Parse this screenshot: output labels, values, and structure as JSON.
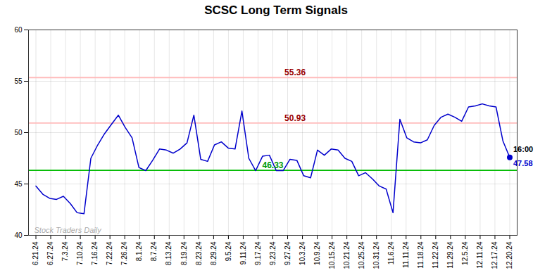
{
  "chart_data": {
    "type": "line",
    "title": "SCSC Long Term Signals",
    "values": [
      44.8,
      44.0,
      43.6,
      43.5,
      43.8,
      43.1,
      42.2,
      42.1,
      47.5,
      48.8,
      49.9,
      50.8,
      51.7,
      50.5,
      49.5,
      46.6,
      46.3,
      47.3,
      48.4,
      48.3,
      48.0,
      48.4,
      49.0,
      51.7,
      47.4,
      47.2,
      48.8,
      49.1,
      48.5,
      48.4,
      52.1,
      47.5,
      46.3,
      47.7,
      47.8,
      46.3,
      46.3,
      47.4,
      47.3,
      45.8,
      45.6,
      48.3,
      47.8,
      48.4,
      48.3,
      47.5,
      47.2,
      45.8,
      46.1,
      45.5,
      44.8,
      44.5,
      42.2,
      51.3,
      49.5,
      49.1,
      49.0,
      49.3,
      50.7,
      51.5,
      51.8,
      51.5,
      51.1,
      52.5,
      52.6,
      52.8,
      52.6,
      52.5,
      49.2,
      47.58
    ],
    "color": "#0000cc",
    "xlim": [
      -0.5,
      32.5
    ],
    "xticks": [
      {
        "value": 0,
        "label": "6.21.24"
      },
      {
        "value": 1,
        "label": "6.27.24"
      },
      {
        "value": 2,
        "label": "7.3.24"
      },
      {
        "value": 3,
        "label": "7.10.24"
      },
      {
        "value": 4,
        "label": "7.16.24"
      },
      {
        "value": 5,
        "label": "7.22.24"
      },
      {
        "value": 6,
        "label": "7.26.24"
      },
      {
        "value": 7,
        "label": "8.1.24"
      },
      {
        "value": 8,
        "label": "8.7.24"
      },
      {
        "value": 9,
        "label": "8.13.24"
      },
      {
        "value": 10,
        "label": "8.19.24"
      },
      {
        "value": 11,
        "label": "8.23.24"
      },
      {
        "value": 12,
        "label": "8.29.24"
      },
      {
        "value": 13,
        "label": "9.5.24"
      },
      {
        "value": 14,
        "label": "9.11.24"
      },
      {
        "value": 15,
        "label": "9.17.24"
      },
      {
        "value": 16,
        "label": "9.23.24"
      },
      {
        "value": 17,
        "label": "9.27.24"
      },
      {
        "value": 18,
        "label": "10.3.24"
      },
      {
        "value": 19,
        "label": "10.9.24"
      },
      {
        "value": 20,
        "label": "10.15.24"
      },
      {
        "value": 21,
        "label": "10.21.24"
      },
      {
        "value": 22,
        "label": "10.25.24"
      },
      {
        "value": 23,
        "label": "10.31.24"
      },
      {
        "value": 24,
        "label": "11.6.24"
      },
      {
        "value": 25,
        "label": "11.11.24"
      },
      {
        "value": 26,
        "label": "11.18.24"
      },
      {
        "value": 27,
        "label": "11.22.24"
      },
      {
        "value": 28,
        "label": "11.29.24"
      },
      {
        "value": 29,
        "label": "12.5.24"
      },
      {
        "value": 30,
        "label": "12.11.24"
      },
      {
        "value": 31,
        "label": "12.17.24"
      },
      {
        "value": 32,
        "label": "12.20.24"
      }
    ],
    "ylim": [
      40,
      60
    ],
    "yticks": [
      40,
      45,
      50,
      55,
      60
    ],
    "grid": true,
    "reference_lines": [
      {
        "value": 55.36,
        "color": "#ffbbbb",
        "label_color": "#990000"
      },
      {
        "value": 50.93,
        "color": "#ffbbbb",
        "label_color": "#990000"
      },
      {
        "value": 46.33,
        "color": "#00bb00",
        "label_color": "#009900"
      }
    ],
    "last_point": {
      "value": 47.58,
      "time": "16:00"
    },
    "watermark": "Stock Traders Daily"
  }
}
